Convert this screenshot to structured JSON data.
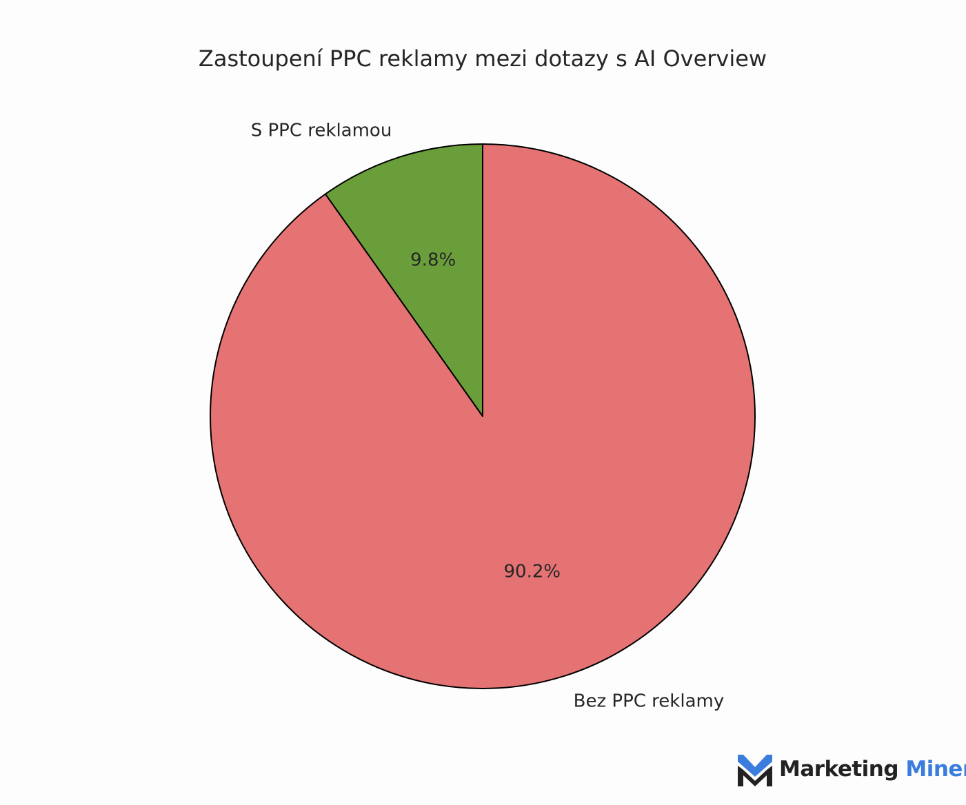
{
  "chart_data": {
    "type": "pie",
    "title": "Zastoupení PPC reklamy mezi dotazy s AI Overview",
    "slices": [
      {
        "label": "S PPC reklamou",
        "value": 9.8,
        "pct_label": "9.8%",
        "color": "#6a9e3a"
      },
      {
        "label": "Bez PPC reklamy",
        "value": 90.2,
        "pct_label": "90.2%",
        "color": "#e57373"
      }
    ],
    "start_angle_deg": 90,
    "direction": "counterclockwise",
    "edge_color": "#000000"
  },
  "branding": {
    "logo_word_1": "Marketing",
    "logo_word_2": "Miner",
    "logo_mark_icon": "marketing-miner-m-icon",
    "logo_mark_color_top": "#3b7ddd",
    "logo_mark_color_bottom": "#222222"
  }
}
